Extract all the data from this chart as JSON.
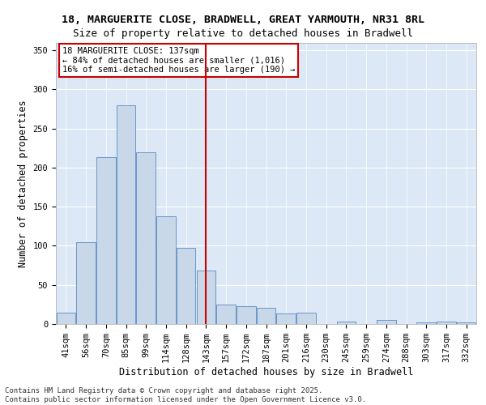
{
  "title_line1": "18, MARGUERITE CLOSE, BRADWELL, GREAT YARMOUTH, NR31 8RL",
  "title_line2": "Size of property relative to detached houses in Bradwell",
  "xlabel": "Distribution of detached houses by size in Bradwell",
  "ylabel": "Number of detached properties",
  "categories": [
    "41sqm",
    "56sqm",
    "70sqm",
    "85sqm",
    "99sqm",
    "114sqm",
    "128sqm",
    "143sqm",
    "157sqm",
    "172sqm",
    "187sqm",
    "201sqm",
    "216sqm",
    "230sqm",
    "245sqm",
    "259sqm",
    "274sqm",
    "288sqm",
    "303sqm",
    "317sqm",
    "332sqm"
  ],
  "values": [
    14,
    105,
    213,
    280,
    220,
    138,
    97,
    68,
    25,
    23,
    21,
    13,
    15,
    0,
    3,
    0,
    5,
    0,
    2,
    3,
    2
  ],
  "bar_color": "#c8d8e8",
  "bar_edge_color": "#5b8ac5",
  "vline_color": "#cc0000",
  "annotation_text": "18 MARGUERITE CLOSE: 137sqm\n← 84% of detached houses are smaller (1,016)\n16% of semi-detached houses are larger (190) →",
  "annotation_box_color": "#ffffff",
  "annotation_box_edge": "#cc0000",
  "ylim": [
    0,
    360
  ],
  "yticks": [
    0,
    50,
    100,
    150,
    200,
    250,
    300,
    350
  ],
  "plot_bg_color": "#dce8f5",
  "footer_text": "Contains HM Land Registry data © Crown copyright and database right 2025.\nContains public sector information licensed under the Open Government Licence v3.0.",
  "title_fontsize": 9.5,
  "subtitle_fontsize": 9,
  "axis_label_fontsize": 8.5,
  "tick_fontsize": 7.5,
  "annotation_fontsize": 7.5,
  "footer_fontsize": 6.5
}
